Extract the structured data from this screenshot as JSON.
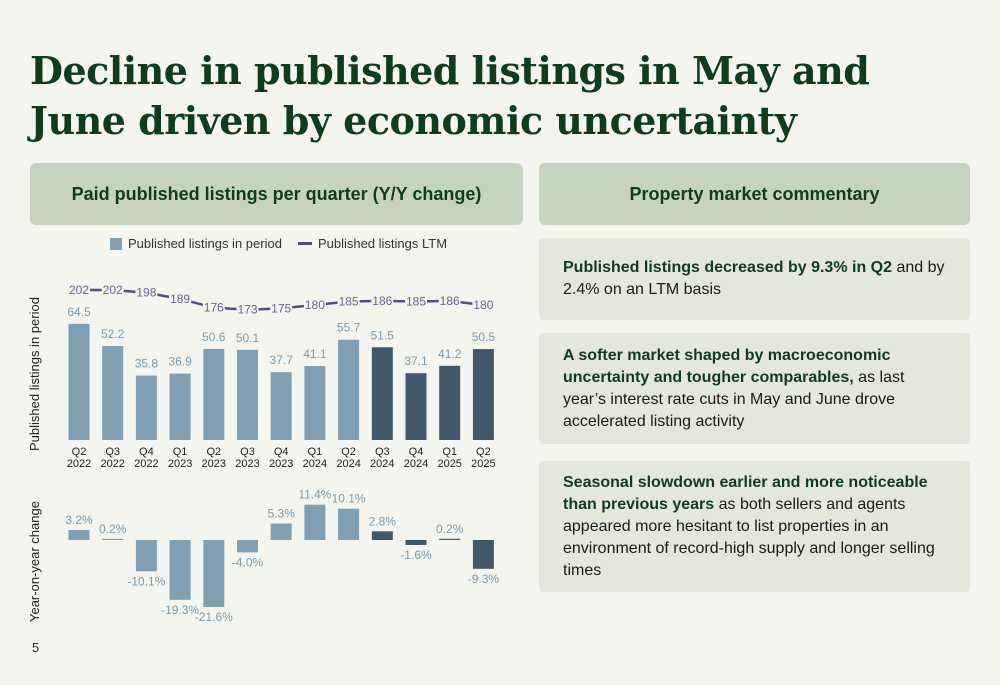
{
  "title": "Decline in published listings in May and June driven by economic uncertainty",
  "chart_header": "Paid published listings per quarter (Y/Y change)",
  "commentary_header": "Property market commentary",
  "page_number": "5",
  "colors": {
    "bar_past": "#7fa0b2",
    "bar_recent": "#41576a",
    "ltm_line": "#5b4a7e",
    "ltm_label": "#6f5f92",
    "yoy_label": "#7a9aab"
  },
  "chart_data": [
    {
      "type": "bar",
      "ylabel": "Published listings in period",
      "categories": [
        "Q2 2022",
        "Q3 2022",
        "Q4 2022",
        "Q1 2023",
        "Q2 2023",
        "Q3 2023",
        "Q4 2023",
        "Q1 2024",
        "Q2 2024",
        "Q3 2024",
        "Q4 2024",
        "Q1 2025",
        "Q2 2025"
      ],
      "category_lines": [
        [
          "Q2",
          "2022"
        ],
        [
          "Q3",
          "2022"
        ],
        [
          "Q4",
          "2022"
        ],
        [
          "Q1",
          "2023"
        ],
        [
          "Q2",
          "2023"
        ],
        [
          "Q3",
          "2023"
        ],
        [
          "Q4",
          "2023"
        ],
        [
          "Q1",
          "2024"
        ],
        [
          "Q2",
          "2024"
        ],
        [
          "Q3",
          "2024"
        ],
        [
          "Q4",
          "2024"
        ],
        [
          "Q1",
          "2025"
        ],
        [
          "Q2",
          "2025"
        ]
      ],
      "legend": [
        "Published listings in period",
        "Published listings LTM"
      ],
      "series": [
        {
          "name": "Published listings in period",
          "type": "bar",
          "values": [
            64.5,
            52.2,
            35.8,
            36.9,
            50.6,
            50.1,
            37.7,
            41.1,
            55.7,
            51.5,
            37.1,
            41.2,
            50.5
          ],
          "labels": [
            "64.5",
            "52.2",
            "35.8",
            "36.9",
            "50.6",
            "50.1",
            "37.7",
            "41.1",
            "55.7",
            "51.5",
            "37.1",
            "41.2",
            "50.5"
          ]
        },
        {
          "name": "Published listings LTM",
          "type": "line",
          "values": [
            202,
            202,
            198,
            189,
            176,
            173,
            175,
            180,
            185,
            186,
            185,
            186,
            180
          ],
          "labels": [
            "202",
            "202",
            "198",
            "189",
            "176",
            "173",
            "175",
            "180",
            "185",
            "186",
            "185",
            "186",
            "180"
          ]
        }
      ],
      "recent_from_index": 9
    },
    {
      "type": "bar",
      "ylabel": "Year-on-year change",
      "categories": [
        "Q2 2022",
        "Q3 2022",
        "Q4 2022",
        "Q1 2023",
        "Q2 2023",
        "Q3 2023",
        "Q4 2023",
        "Q1 2024",
        "Q2 2024",
        "Q3 2024",
        "Q4 2024",
        "Q1 2025",
        "Q2 2025"
      ],
      "values": [
        3.2,
        0.2,
        -10.1,
        -19.3,
        -21.6,
        -4.0,
        5.3,
        11.4,
        10.1,
        2.8,
        -1.6,
        0.2,
        -9.3
      ],
      "labels": [
        "3.2%",
        "0.2%",
        "-10.1%",
        "-19.3%",
        "-21.6%",
        "-4.0%",
        "5.3%",
        "11.4%",
        "10.1%",
        "2.8%",
        "-1.6%",
        "0.2%",
        "-9.3%"
      ]
    }
  ],
  "commentary": [
    {
      "bold": "Published listings decreased by 9.3% in Q2",
      "text": " and by 2.4% on an LTM basis"
    },
    {
      "bold": "A softer market shaped by macroeconomic uncertainty and tougher comparables,",
      "text": " as last year’s interest rate cuts in May and June drove accelerated listing activity"
    },
    {
      "bold": "Seasonal slowdown earlier and more noticeable than previous years",
      "text": " as both sellers and agents appeared more hesitant to list properties in an environment of record-high supply and longer selling times"
    }
  ]
}
